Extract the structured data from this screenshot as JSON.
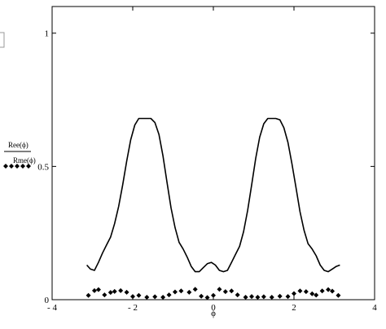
{
  "chart_data": {
    "type": "line",
    "xlabel": "ϕ",
    "ylabel_top": "Ree(ϕ)",
    "ylabel_bottom": "Rme(ϕ)",
    "xlim": [
      -4,
      4
    ],
    "ylim": [
      0,
      1.1
    ],
    "x_ticks": [
      -4,
      -2,
      0,
      2,
      4
    ],
    "x_tick_labels": [
      "- 4",
      "- 2",
      "0",
      "2",
      "4"
    ],
    "y_ticks": [
      0,
      0.5,
      1
    ],
    "y_tick_labels": [
      "0",
      "0.5",
      "1"
    ],
    "grid": false,
    "series": [
      {
        "style": "solid-line",
        "color": "#000000",
        "x": [
          -3.14,
          -3.05,
          -2.95,
          -2.85,
          -2.75,
          -2.65,
          -2.55,
          -2.45,
          -2.35,
          -2.25,
          -2.15,
          -2.05,
          -1.95,
          -1.85,
          -1.75,
          -1.65,
          -1.55,
          -1.45,
          -1.35,
          -1.25,
          -1.15,
          -1.05,
          -0.95,
          -0.85,
          -0.75,
          -0.65,
          -0.55,
          -0.45,
          -0.35,
          -0.25,
          -0.15,
          -0.05,
          0.05,
          0.15,
          0.25,
          0.35,
          0.45,
          0.55,
          0.65,
          0.75,
          0.85,
          0.95,
          1.05,
          1.15,
          1.25,
          1.35,
          1.45,
          1.55,
          1.65,
          1.75,
          1.85,
          1.95,
          2.05,
          2.15,
          2.25,
          2.35,
          2.45,
          2.55,
          2.65,
          2.75,
          2.85,
          2.95,
          3.05,
          3.14
        ],
        "y": [
          0.13,
          0.115,
          0.11,
          0.14,
          0.175,
          0.205,
          0.235,
          0.285,
          0.35,
          0.43,
          0.52,
          0.6,
          0.655,
          0.68,
          0.68,
          0.68,
          0.68,
          0.665,
          0.62,
          0.54,
          0.44,
          0.345,
          0.27,
          0.215,
          0.19,
          0.16,
          0.125,
          0.105,
          0.105,
          0.12,
          0.135,
          0.14,
          0.13,
          0.11,
          0.105,
          0.11,
          0.14,
          0.17,
          0.2,
          0.255,
          0.335,
          0.43,
          0.53,
          0.61,
          0.66,
          0.68,
          0.68,
          0.68,
          0.675,
          0.645,
          0.59,
          0.51,
          0.42,
          0.33,
          0.26,
          0.21,
          0.19,
          0.165,
          0.13,
          0.11,
          0.105,
          0.115,
          0.125,
          0.13
        ]
      },
      {
        "style": "diamond-markers",
        "color": "#000000",
        "x": [
          -3.1,
          -2.95,
          -2.85,
          -2.7,
          -2.55,
          -2.45,
          -2.3,
          -2.15,
          -2.0,
          -1.85,
          -1.65,
          -1.45,
          -1.25,
          -1.1,
          -0.95,
          -0.8,
          -0.6,
          -0.45,
          -0.3,
          -0.15,
          0.0,
          0.15,
          0.3,
          0.45,
          0.6,
          0.8,
          0.95,
          1.1,
          1.25,
          1.45,
          1.65,
          1.85,
          2.0,
          2.15,
          2.3,
          2.45,
          2.55,
          2.7,
          2.85,
          2.95,
          3.1
        ],
        "y": [
          0.016,
          0.034,
          0.038,
          0.018,
          0.027,
          0.031,
          0.034,
          0.028,
          0.012,
          0.016,
          0.009,
          0.011,
          0.009,
          0.018,
          0.029,
          0.033,
          0.028,
          0.039,
          0.013,
          0.008,
          0.016,
          0.039,
          0.03,
          0.033,
          0.018,
          0.009,
          0.012,
          0.009,
          0.011,
          0.009,
          0.013,
          0.012,
          0.023,
          0.033,
          0.03,
          0.022,
          0.017,
          0.033,
          0.038,
          0.032,
          0.016
        ]
      }
    ]
  }
}
